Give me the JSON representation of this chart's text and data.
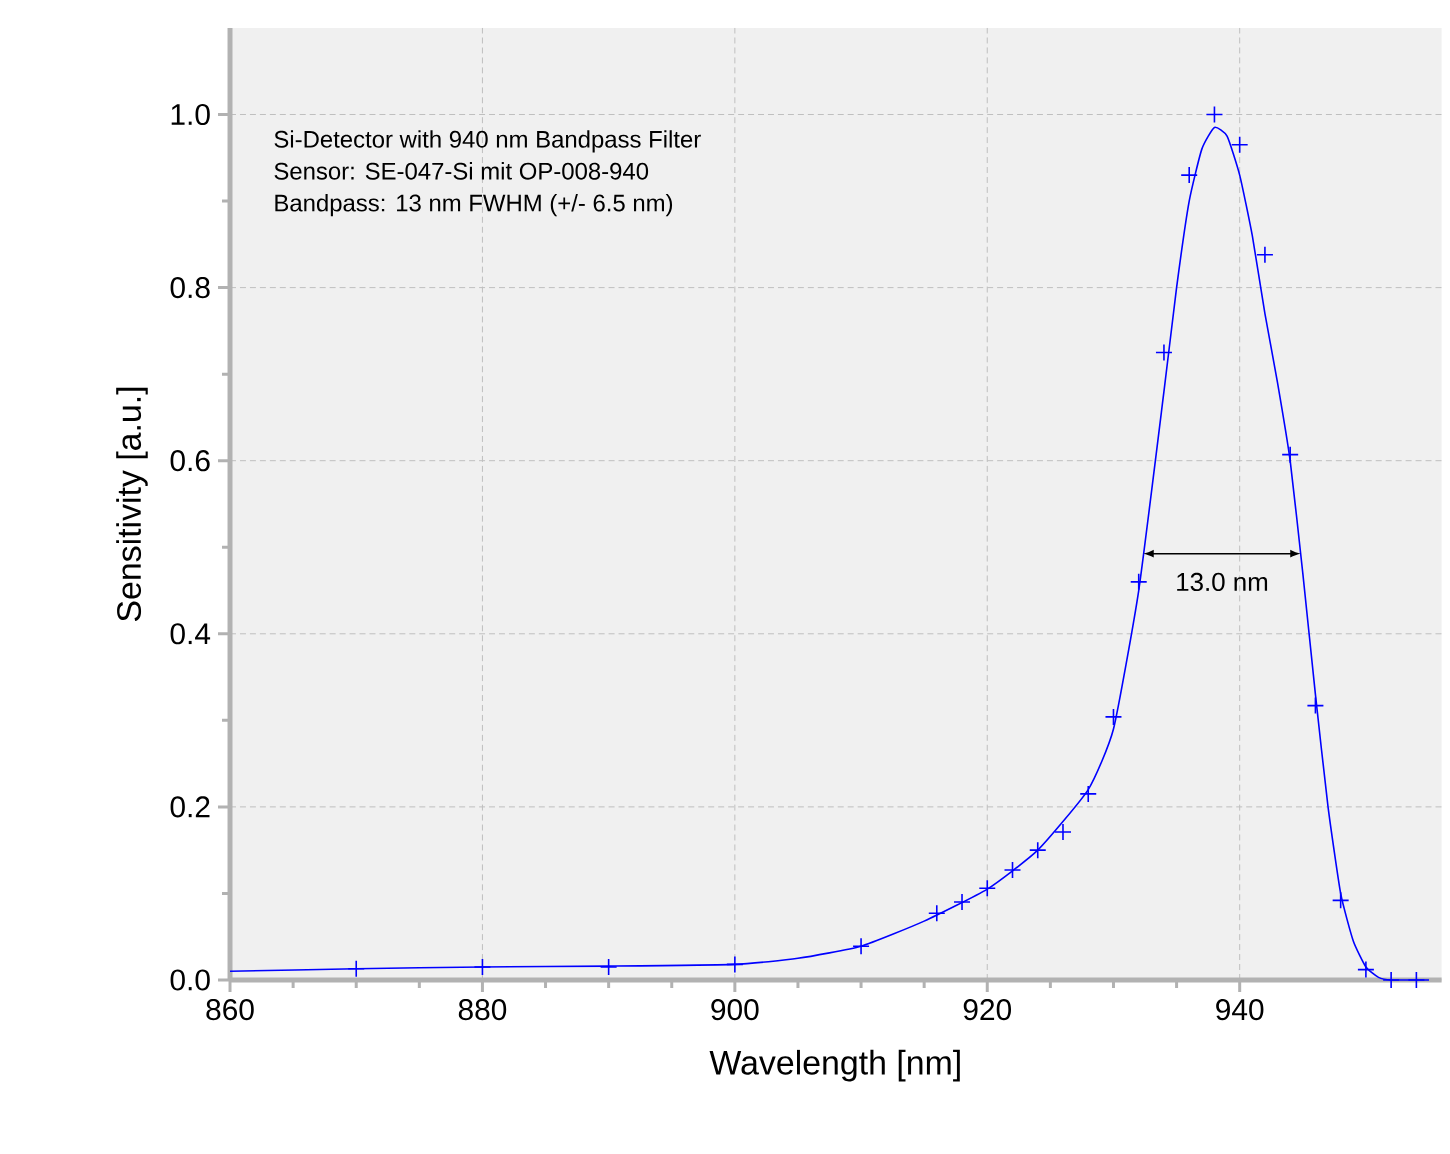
{
  "chart_data": {
    "type": "scatter",
    "xlabel": "Wavelength [nm]",
    "ylabel": "Sensitivity [a.u.]",
    "annotations": [
      "Si-Detector with 940 nm Bandpass Filter",
      "Sensor: SE-047-Si mit OP-008-940",
      "Bandpass: 13 nm FWHM (+/- 6.5 nm)",
      "13.0 nm"
    ],
    "xlim": [
      860,
      956
    ],
    "ylim": [
      0,
      1.1
    ],
    "xticks": [
      860,
      880,
      900,
      920,
      940
    ],
    "yticks": [
      {
        "value": 0,
        "label": "0.0"
      },
      {
        "value": 0.2,
        "label": "0.2"
      },
      {
        "value": 0.4,
        "label": "0.4"
      },
      {
        "value": 0.6,
        "label": "0.6"
      },
      {
        "value": 0.8,
        "label": "0.8"
      },
      {
        "value": 1,
        "label": "1.0"
      }
    ],
    "grid": true,
    "series": [
      {
        "marker": "cross",
        "color": "#0000ff",
        "x": [
          870,
          880,
          890,
          900,
          910,
          916,
          918,
          920,
          922,
          924,
          926,
          928,
          930,
          932,
          934,
          936,
          938,
          940,
          942,
          944,
          946,
          948,
          950,
          952,
          954
        ],
        "values": [
          0.013,
          0.015,
          0.015,
          0.018,
          0.039,
          0.077,
          0.09,
          0.106,
          0.127,
          0.15,
          0.171,
          0.215,
          0.304,
          0.46,
          0.725,
          0.93,
          1.0,
          0.965,
          0.838,
          0.607,
          0.317,
          0.092,
          0.012,
          0.0,
          0.0
        ]
      },
      {
        "type": "line",
        "marker": "none",
        "color": "#0000ff",
        "x": [
          860,
          870,
          880,
          890,
          900,
          905,
          910,
          915,
          920,
          924,
          928,
          930,
          932,
          934,
          935,
          936,
          937,
          938,
          939,
          940,
          941,
          942,
          943,
          944,
          945,
          946,
          947,
          948,
          949,
          950,
          951,
          952,
          955
        ],
        "values": [
          0.01,
          0.013,
          0.015,
          0.016,
          0.018,
          0.025,
          0.039,
          0.068,
          0.105,
          0.15,
          0.22,
          0.29,
          0.45,
          0.68,
          0.8,
          0.9,
          0.96,
          0.985,
          0.975,
          0.93,
          0.86,
          0.77,
          0.69,
          0.6,
          0.47,
          0.33,
          0.2,
          0.1,
          0.045,
          0.015,
          0.003,
          0.0,
          0.0
        ]
      }
    ]
  }
}
